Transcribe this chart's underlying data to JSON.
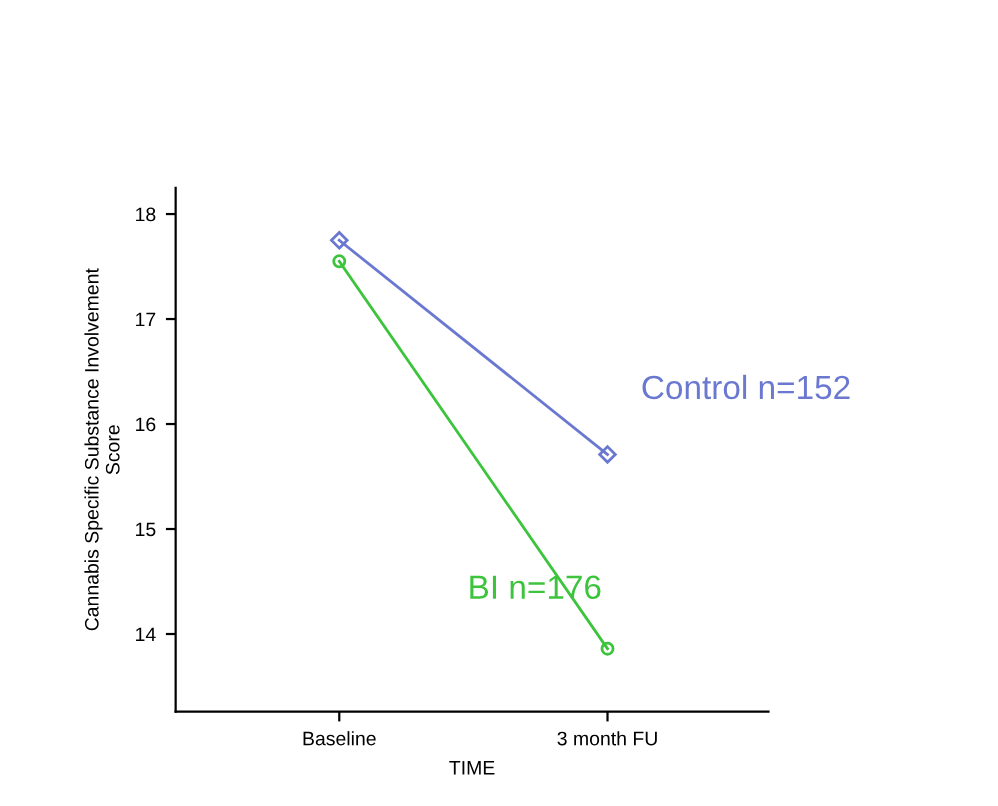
{
  "chart_data": {
    "type": "line",
    "xlabel": "TIME",
    "ylabel": "Cannabis Specific Substance Involvement\nScore",
    "categories": [
      "Baseline",
      "3 month FU"
    ],
    "series": [
      {
        "name": "Control n=152",
        "color": "#6a78d0",
        "values": [
          17.75,
          15.71
        ],
        "marker": "diamond"
      },
      {
        "name": "BI n=176",
        "color": "#3cc43c",
        "values": [
          17.55,
          13.86
        ],
        "marker": "circle"
      }
    ],
    "ylim": [
      13.26,
      18.25
    ],
    "yticks": [
      14,
      15,
      16,
      17,
      18
    ],
    "grid": false,
    "legend": false,
    "line_style": "solid"
  }
}
